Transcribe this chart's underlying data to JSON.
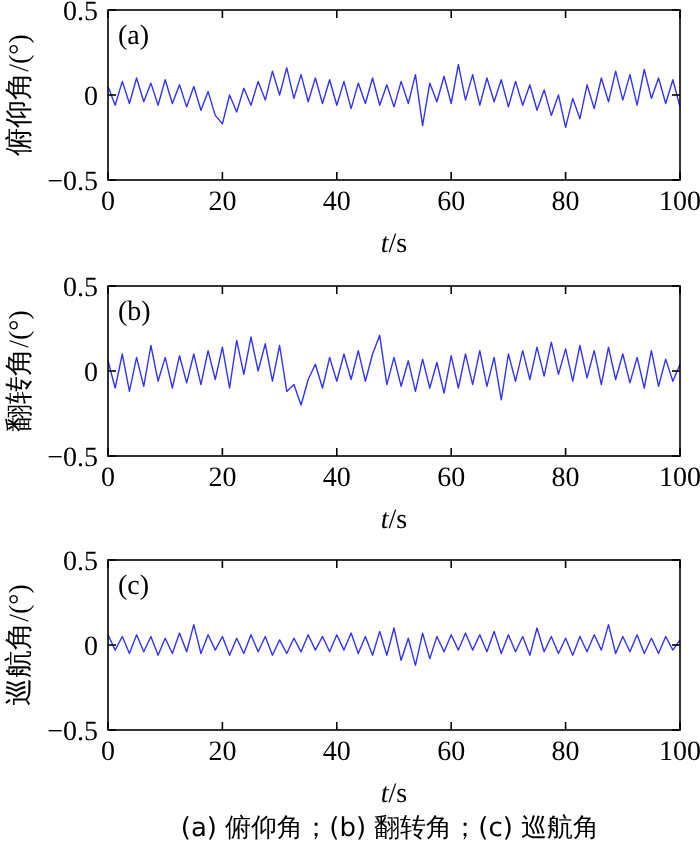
{
  "chart_data": [
    {
      "type": "line",
      "ylabel": "俯仰角/(°)",
      "xlabel": "*t*/s",
      "annotations": [
        "(a)"
      ],
      "xlim": [
        0,
        100
      ],
      "ylim": [
        -0.5,
        0.5
      ],
      "xticks": [
        0,
        20,
        40,
        60,
        80,
        100
      ],
      "yticks": [
        -0.5,
        0,
        0.5
      ],
      "grid": false,
      "x": [
        0,
        1.25,
        2.5,
        3.75,
        5,
        6.25,
        7.5,
        8.75,
        10,
        11.25,
        12.5,
        13.75,
        15,
        16.25,
        17.5,
        18.75,
        20,
        21.25,
        22.5,
        23.75,
        25,
        26.25,
        27.5,
        28.75,
        30,
        31.25,
        32.5,
        33.75,
        35,
        36.25,
        37.5,
        38.75,
        40,
        41.25,
        42.5,
        43.75,
        45,
        46.25,
        47.5,
        48.75,
        50,
        51.25,
        52.5,
        53.75,
        55,
        56.25,
        57.5,
        58.75,
        60,
        61.25,
        62.5,
        63.75,
        65,
        66.25,
        67.5,
        68.75,
        70,
        71.25,
        72.5,
        73.75,
        75,
        76.25,
        77.5,
        78.75,
        80,
        81.25,
        82.5,
        83.75,
        85,
        86.25,
        87.5,
        88.75,
        90,
        91.25,
        92.5,
        93.75,
        95,
        96.25,
        97.5,
        98.75,
        100
      ],
      "series": [
        {
          "color": "#3333ff",
          "values": [
            0.05,
            -0.06,
            0.08,
            -0.05,
            0.1,
            -0.04,
            0.07,
            -0.06,
            0.09,
            -0.05,
            0.06,
            -0.07,
            0.05,
            -0.09,
            0.02,
            -0.12,
            -0.17,
            0.0,
            -0.1,
            0.04,
            -0.06,
            0.08,
            -0.03,
            0.14,
            0.0,
            0.16,
            -0.02,
            0.12,
            -0.04,
            0.1,
            -0.05,
            0.09,
            -0.06,
            0.08,
            -0.08,
            0.07,
            -0.05,
            0.1,
            -0.06,
            0.06,
            -0.07,
            0.08,
            -0.05,
            0.12,
            -0.18,
            0.07,
            -0.04,
            0.11,
            -0.05,
            0.18,
            -0.03,
            0.12,
            -0.06,
            0.1,
            -0.04,
            0.09,
            -0.07,
            0.08,
            -0.06,
            0.06,
            -0.09,
            0.03,
            -0.12,
            0.0,
            -0.19,
            -0.02,
            -0.14,
            0.06,
            -0.08,
            0.1,
            -0.04,
            0.14,
            -0.03,
            0.12,
            -0.06,
            0.15,
            -0.02,
            0.1,
            -0.05,
            0.09,
            -0.07
          ]
        }
      ]
    },
    {
      "type": "line",
      "ylabel": "翻转角/(°)",
      "xlabel": "*t*/s",
      "annotations": [
        "(b)"
      ],
      "xlim": [
        0,
        100
      ],
      "ylim": [
        -0.5,
        0.5
      ],
      "xticks": [
        0,
        20,
        40,
        60,
        80,
        100
      ],
      "yticks": [
        -0.5,
        0,
        0.5
      ],
      "grid": false,
      "x": [
        0,
        1.25,
        2.5,
        3.75,
        5,
        6.25,
        7.5,
        8.75,
        10,
        11.25,
        12.5,
        13.75,
        15,
        16.25,
        17.5,
        18.75,
        20,
        21.25,
        22.5,
        23.75,
        25,
        26.25,
        27.5,
        28.75,
        30,
        31.25,
        32.5,
        33.75,
        35,
        36.25,
        37.5,
        38.75,
        40,
        41.25,
        42.5,
        43.75,
        45,
        46.25,
        47.5,
        48.75,
        50,
        51.25,
        52.5,
        53.75,
        55,
        56.25,
        57.5,
        58.75,
        60,
        61.25,
        62.5,
        63.75,
        65,
        66.25,
        67.5,
        68.75,
        70,
        71.25,
        72.5,
        73.75,
        75,
        76.25,
        77.5,
        78.75,
        80,
        81.25,
        82.5,
        83.75,
        85,
        86.25,
        87.5,
        88.75,
        90,
        91.25,
        92.5,
        93.75,
        95,
        96.25,
        97.5,
        98.75,
        100
      ],
      "series": [
        {
          "color": "#3333ff",
          "values": [
            0.06,
            -0.1,
            0.1,
            -0.12,
            0.08,
            -0.09,
            0.15,
            -0.06,
            0.08,
            -0.1,
            0.09,
            -0.07,
            0.1,
            -0.08,
            0.12,
            -0.05,
            0.14,
            -0.1,
            0.18,
            -0.02,
            0.2,
            0.0,
            0.16,
            -0.06,
            0.15,
            -0.12,
            -0.08,
            -0.2,
            -0.05,
            0.04,
            -0.1,
            0.08,
            -0.06,
            0.1,
            -0.05,
            0.12,
            -0.06,
            0.1,
            0.21,
            -0.08,
            0.08,
            -0.09,
            0.06,
            -0.12,
            0.07,
            -0.1,
            0.05,
            -0.13,
            0.09,
            -0.1,
            0.1,
            -0.08,
            0.12,
            -0.09,
            0.08,
            -0.17,
            0.1,
            -0.06,
            0.12,
            -0.05,
            0.14,
            -0.03,
            0.17,
            -0.02,
            0.13,
            -0.06,
            0.15,
            -0.04,
            0.12,
            -0.08,
            0.14,
            -0.05,
            0.1,
            -0.07,
            0.08,
            -0.1,
            0.12,
            -0.09,
            0.07,
            -0.06,
            0.04
          ]
        }
      ]
    },
    {
      "type": "line",
      "ylabel": "巡航角/(°)",
      "xlabel": "*t*/s",
      "annotations": [
        "(c)",
        "(a) 俯仰角；(b) 翻转角；(c) 巡航角"
      ],
      "xlim": [
        0,
        100
      ],
      "ylim": [
        -0.5,
        0.5
      ],
      "xticks": [
        0,
        20,
        40,
        60,
        80,
        100
      ],
      "yticks": [
        -0.5,
        0,
        0.5
      ],
      "grid": false,
      "x": [
        0,
        1.25,
        2.5,
        3.75,
        5,
        6.25,
        7.5,
        8.75,
        10,
        11.25,
        12.5,
        13.75,
        15,
        16.25,
        17.5,
        18.75,
        20,
        21.25,
        22.5,
        23.75,
        25,
        26.25,
        27.5,
        28.75,
        30,
        31.25,
        32.5,
        33.75,
        35,
        36.25,
        37.5,
        38.75,
        40,
        41.25,
        42.5,
        43.75,
        45,
        46.25,
        47.5,
        48.75,
        50,
        51.25,
        52.5,
        53.75,
        55,
        56.25,
        57.5,
        58.75,
        60,
        61.25,
        62.5,
        63.75,
        65,
        66.25,
        67.5,
        68.75,
        70,
        71.25,
        72.5,
        73.75,
        75,
        76.25,
        77.5,
        78.75,
        80,
        81.25,
        82.5,
        83.75,
        85,
        86.25,
        87.5,
        88.75,
        90,
        91.25,
        92.5,
        93.75,
        95,
        96.25,
        97.5,
        98.75,
        100
      ],
      "series": [
        {
          "color": "#3333ff",
          "values": [
            0.06,
            -0.03,
            0.05,
            -0.05,
            0.06,
            -0.04,
            0.05,
            -0.06,
            0.04,
            -0.05,
            0.07,
            -0.04,
            0.12,
            -0.05,
            0.06,
            -0.03,
            0.05,
            -0.06,
            0.04,
            -0.05,
            0.06,
            -0.04,
            0.05,
            -0.06,
            0.03,
            -0.05,
            0.04,
            -0.04,
            0.06,
            -0.03,
            0.05,
            -0.04,
            0.06,
            -0.03,
            0.07,
            -0.05,
            0.05,
            -0.06,
            0.08,
            -0.06,
            0.1,
            -0.09,
            0.04,
            -0.12,
            0.07,
            -0.08,
            0.05,
            -0.04,
            0.06,
            -0.03,
            0.07,
            -0.03,
            0.06,
            -0.04,
            0.08,
            -0.05,
            0.06,
            -0.04,
            0.05,
            -0.06,
            0.1,
            -0.04,
            0.05,
            -0.05,
            0.04,
            -0.06,
            0.05,
            -0.04,
            0.06,
            -0.03,
            0.12,
            -0.05,
            0.05,
            -0.04,
            0.06,
            -0.05,
            0.04,
            -0.05,
            0.05,
            -0.03,
            0.03
          ]
        }
      ]
    }
  ]
}
